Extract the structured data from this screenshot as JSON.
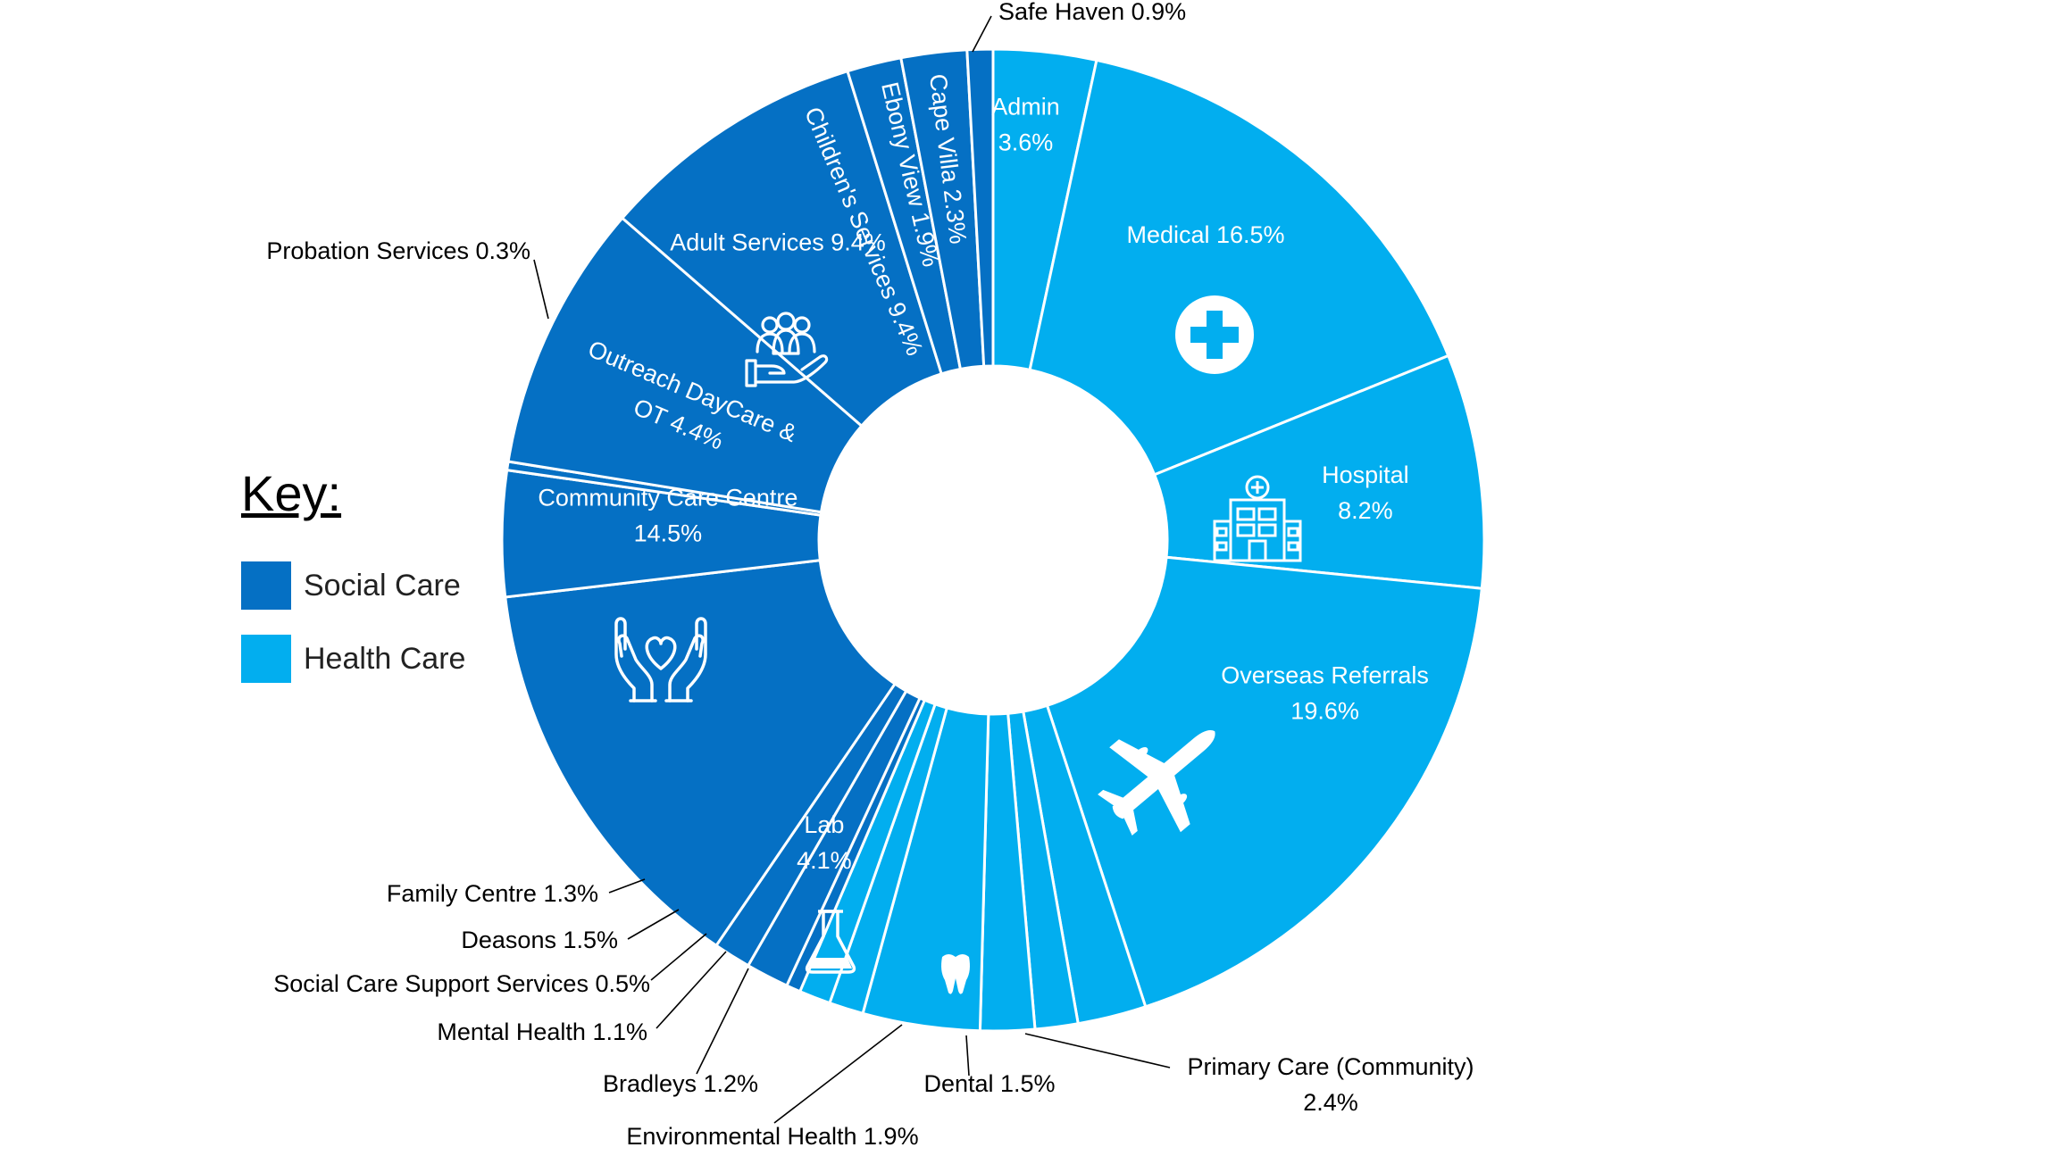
{
  "chart_data": {
    "type": "pie",
    "title": "",
    "colors": {
      "Social Care": "#0570C4",
      "Health Care": "#02AEEF",
      "separator": "#ffffff"
    },
    "legend": {
      "title": "Key:",
      "placement": "left",
      "items": [
        {
          "name": "Social Care",
          "color": "#0570C4"
        },
        {
          "name": "Health Care",
          "color": "#02AEEF"
        }
      ]
    },
    "slices": [
      {
        "name": "Admin",
        "value": 3.6,
        "group": "Health Care",
        "lines": [
          "Admin",
          "3.6%"
        ],
        "placement": "inside"
      },
      {
        "name": "Medical",
        "value": 16.5,
        "group": "Health Care",
        "lines": [
          "Medical 16.5%"
        ],
        "placement": "inside",
        "icon": "medical-cross-icon"
      },
      {
        "name": "Hospital",
        "value": 8.2,
        "group": "Health Care",
        "lines": [
          "Hospital",
          "8.2%"
        ],
        "placement": "inside",
        "icon": "hospital-building-icon"
      },
      {
        "name": "Overseas Referrals",
        "value": 19.6,
        "group": "Health Care",
        "lines": [
          "Overseas Referrals",
          "19.6%"
        ],
        "placement": "inside",
        "icon": "airplane-icon"
      },
      {
        "name": "Primary Care (Community)",
        "value": 2.4,
        "group": "Health Care",
        "lines": [
          "Primary Care (Community)",
          "2.4%"
        ],
        "placement": "outside"
      },
      {
        "name": "Dental",
        "value": 1.5,
        "group": "Health Care",
        "lines": [
          "Dental 1.5%"
        ],
        "placement": "outside",
        "icon": "tooth-icon"
      },
      {
        "name": "Environmental Health",
        "value": 1.9,
        "group": "Health Care",
        "lines": [
          "Environmental Health 1.9%"
        ],
        "placement": "outside"
      },
      {
        "name": "Lab",
        "value": 4.1,
        "group": "Health Care",
        "lines": [
          "Lab",
          "4.1%"
        ],
        "placement": "inside",
        "icon": "flask-icon"
      },
      {
        "name": "Bradleys",
        "value": 1.2,
        "group": "Health Care",
        "lines": [
          "Bradleys 1.2%"
        ],
        "placement": "outside"
      },
      {
        "name": "Mental Health",
        "value": 1.1,
        "group": "Health Care",
        "lines": [
          "Mental Health 1.1%"
        ],
        "placement": "outside"
      },
      {
        "name": "Social Care Support Services",
        "value": 0.5,
        "group": "Social Care",
        "lines": [
          "Social Care Support Services 0.5%"
        ],
        "placement": "outside"
      },
      {
        "name": "Deasons",
        "value": 1.5,
        "group": "Social Care",
        "lines": [
          "Deasons 1.5%"
        ],
        "placement": "outside"
      },
      {
        "name": "Family Centre",
        "value": 1.3,
        "group": "Social Care",
        "lines": [
          "Family Centre 1.3%"
        ],
        "placement": "outside"
      },
      {
        "name": "Community Care Centre",
        "value": 14.5,
        "group": "Social Care",
        "lines": [
          "Community Care Centre",
          "14.5%"
        ],
        "placement": "inside",
        "icon": "caring-hands-heart-icon"
      },
      {
        "name": "Outreach DayCare & OT",
        "value": 4.4,
        "group": "Social Care",
        "lines": [
          "Outreach DayCare &",
          "OT 4.4%"
        ],
        "placement": "inside-rotated"
      },
      {
        "name": "Probation Services",
        "value": 0.3,
        "group": "Social Care",
        "lines": [
          "Probation Services 0.3%"
        ],
        "placement": "outside"
      },
      {
        "name": "Adult Services",
        "value": 9.4,
        "group": "Social Care",
        "lines": [
          "Adult Services 9.4%"
        ],
        "placement": "inside",
        "icon": "group-in-hand-icon"
      },
      {
        "name": "Children's Services",
        "value": 9.4,
        "group": "Social Care",
        "lines": [
          "Children's Services 9.4%"
        ],
        "placement": "inside-rotated"
      },
      {
        "name": "Ebony View",
        "value": 1.9,
        "group": "Social Care",
        "lines": [
          "Ebony View 1.9%"
        ],
        "placement": "inside-rotated"
      },
      {
        "name": "Cape Villa",
        "value": 2.3,
        "group": "Social Care",
        "lines": [
          "Cape Villa 2.3%"
        ],
        "placement": "inside-rotated"
      },
      {
        "name": "Safe Haven",
        "value": 0.9,
        "group": "Social Care",
        "lines": [
          "Safe Haven 0.9%"
        ],
        "placement": "outside"
      }
    ]
  }
}
